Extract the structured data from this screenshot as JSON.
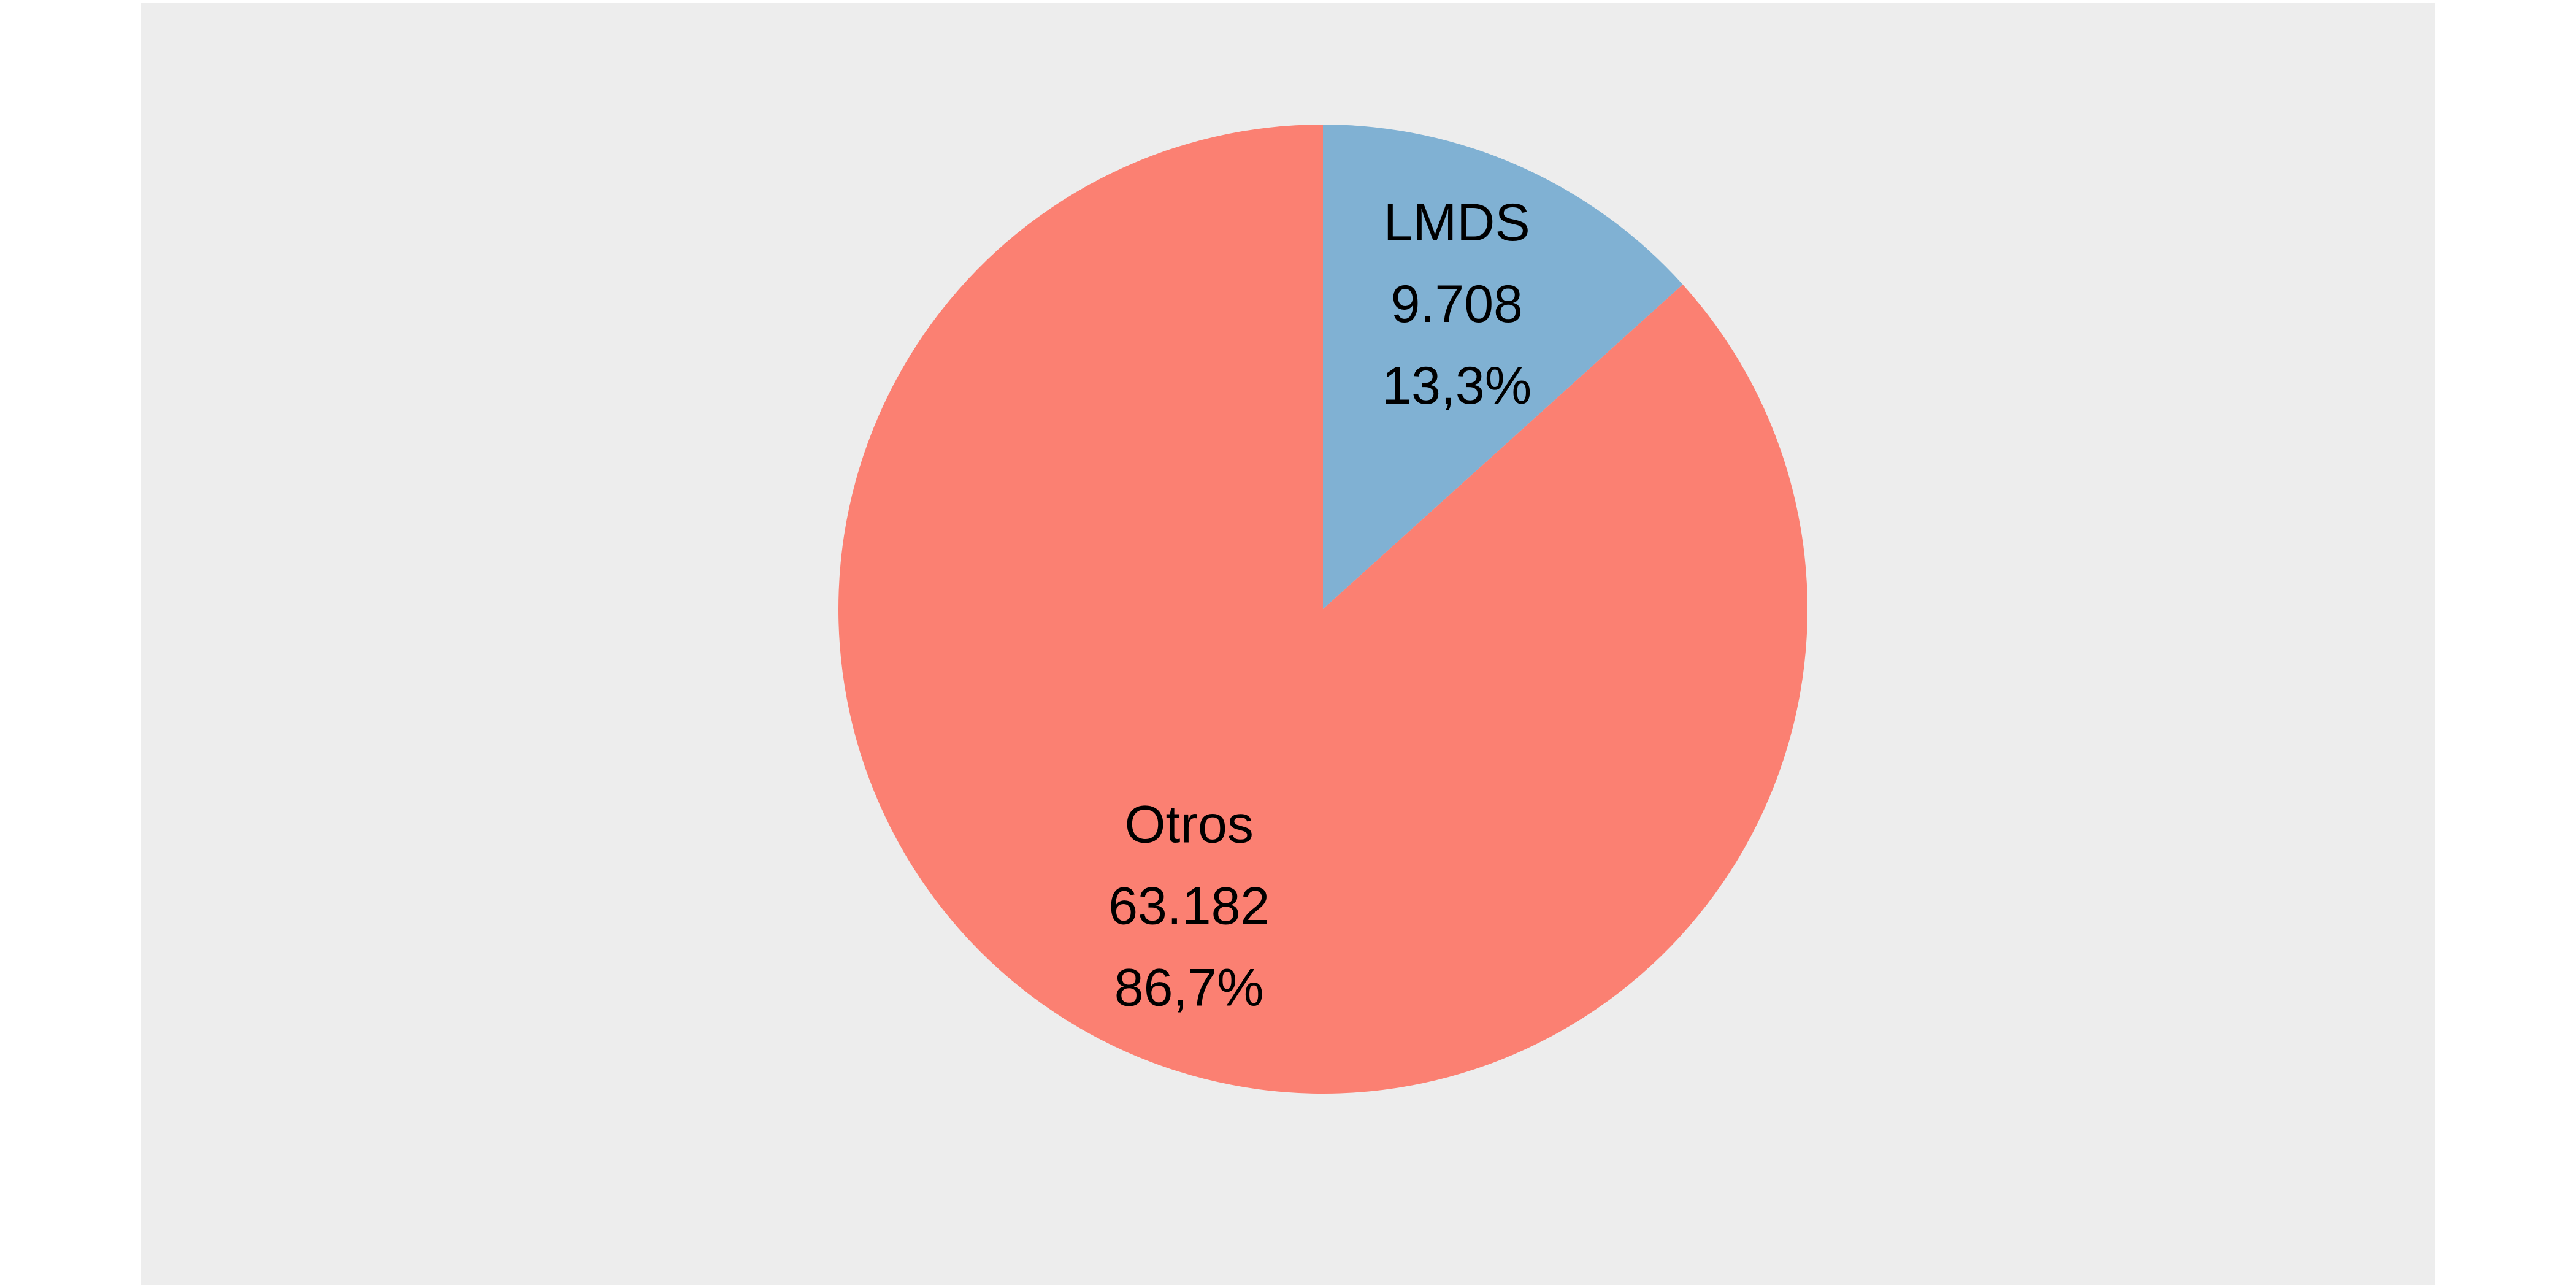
{
  "chart_data": {
    "type": "pie",
    "title": "",
    "slices": [
      {
        "label": "LMDS",
        "value": 9708,
        "value_text": "9.708",
        "percent": 13.3,
        "percent_text": "13,3%",
        "color": "#80b1d3"
      },
      {
        "label": "Otros",
        "value": 63182,
        "value_text": "63.182",
        "percent": 86.7,
        "percent_text": "86,7%",
        "color": "#fb8072"
      }
    ],
    "start_angle": "12 o'clock",
    "direction": "clockwise",
    "legend": "none",
    "background_color": "#ededed"
  }
}
